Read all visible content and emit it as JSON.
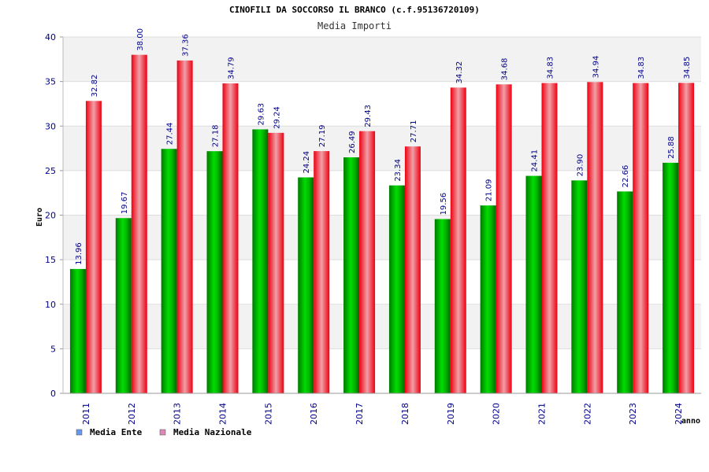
{
  "chart_data": {
    "type": "bar",
    "title": "CINOFILI DA SOCCORSO IL BRANCO (c.f.95136720109)",
    "subtitle": "Media Importi",
    "xlabel": "anno",
    "ylabel": "Euro",
    "ylim": [
      0,
      40
    ],
    "yticks": [
      0,
      5,
      10,
      15,
      20,
      25,
      30,
      35,
      40
    ],
    "grid": true,
    "legend_position": "bottom-left",
    "categories": [
      "2011",
      "2012",
      "2013",
      "2014",
      "2015",
      "2016",
      "2017",
      "2018",
      "2019",
      "2020",
      "2021",
      "2022",
      "2023",
      "2024"
    ],
    "series": [
      {
        "name": "Media Ente",
        "bar_color": "#00c000",
        "legend_color": "#6699ee",
        "values": [
          13.96,
          19.67,
          27.44,
          27.18,
          29.63,
          24.24,
          26.49,
          23.34,
          19.56,
          21.09,
          24.41,
          23.9,
          22.66,
          25.88
        ],
        "labels": [
          "13.96",
          "19.67",
          "27.44",
          "27.18",
          "29.63",
          "24.24",
          "26.49",
          "23.34",
          "19.56",
          "21.09",
          "24.41",
          "23.90",
          "22.66",
          "25.88"
        ]
      },
      {
        "name": "Media Nazionale",
        "bar_color": "#ee1122",
        "legend_color": "#dd88bb",
        "values": [
          32.82,
          38.0,
          37.36,
          34.79,
          29.24,
          27.19,
          29.43,
          27.71,
          34.32,
          34.68,
          34.83,
          34.94,
          34.83,
          34.85
        ],
        "labels": [
          "32.82",
          "38.00",
          "37.36",
          "34.79",
          "29.24",
          "27.19",
          "29.43",
          "27.71",
          "34.32",
          "34.68",
          "34.83",
          "34.94",
          "34.83",
          "34.85"
        ]
      }
    ]
  }
}
